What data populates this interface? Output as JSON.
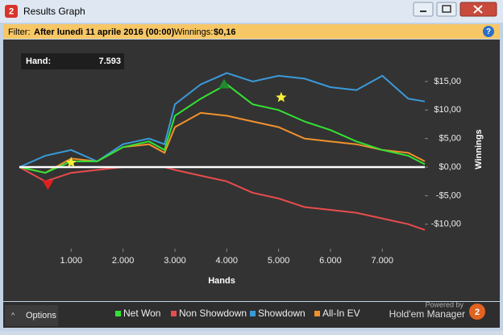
{
  "window": {
    "title": "Results Graph",
    "logo": "2"
  },
  "filter": {
    "label": "Filter:",
    "text": "After lunedì 11 aprile 2016 (00:00)",
    "winnings_label": "Winnings:",
    "winnings": "$0,16"
  },
  "hover": {
    "label": "Hand:",
    "value": "7.593"
  },
  "footer": {
    "options": "Options",
    "powered": "Powered by",
    "brand": "Hold'em Manager"
  },
  "chart_data": {
    "type": "line",
    "x_label": "Hands",
    "y_label": "Winnings",
    "x": [
      0,
      500,
      1000,
      1500,
      2000,
      2500,
      2800,
      3000,
      3500,
      4000,
      4500,
      5000,
      5500,
      6000,
      6500,
      7000,
      7500,
      7820
    ],
    "series": [
      {
        "name": "Net Won",
        "color": "#33e333",
        "values": [
          0,
          -1,
          1,
          1,
          3.5,
          4.5,
          3,
          9,
          12,
          14.5,
          11,
          10,
          8,
          6.5,
          4.5,
          3,
          2,
          0.5
        ]
      },
      {
        "name": "Non Showdown",
        "color": "#e84c4c",
        "values": [
          0,
          -2.5,
          -1,
          -0.5,
          0,
          0,
          0,
          -0.5,
          -1.5,
          -2.5,
          -4.5,
          -5.5,
          -7,
          -7.5,
          -8,
          -9,
          -10,
          -11
        ]
      },
      {
        "name": "Showdown",
        "color": "#3a9ad9",
        "values": [
          0,
          2,
          3,
          1,
          4,
          5,
          4,
          11,
          14.5,
          16.5,
          15,
          16,
          15.5,
          14,
          13.5,
          16,
          12,
          11.5
        ]
      },
      {
        "name": "All-In EV",
        "color": "#f0922c",
        "values": [
          0,
          -1,
          1.5,
          1,
          3.5,
          4,
          2.5,
          7,
          9.5,
          9,
          8,
          7,
          5,
          4.5,
          4,
          3,
          2.5,
          1
        ]
      }
    ],
    "markers": [
      {
        "shape": "star",
        "color": "#f5f03a",
        "x": 1000,
        "y": 0.8
      },
      {
        "shape": "star",
        "color": "#f5f03a",
        "x": 5050,
        "y": 12.2
      },
      {
        "shape": "triangle-up",
        "color": "#1f8a2e",
        "x": 3950,
        "y": 14.5
      },
      {
        "shape": "triangle-down",
        "color": "#e02020",
        "x": 550,
        "y": -3
      }
    ],
    "xlim": [
      0,
      7820
    ],
    "ylim": [
      -14,
      21.5
    ],
    "xticks": [
      {
        "value": 1000,
        "label": "1.000"
      },
      {
        "value": 2000,
        "label": "2.000"
      },
      {
        "value": 3000,
        "label": "3.000"
      },
      {
        "value": 4000,
        "label": "4.000"
      },
      {
        "value": 5000,
        "label": "5.000"
      },
      {
        "value": 6000,
        "label": "6.000"
      },
      {
        "value": 7000,
        "label": "7.000"
      }
    ],
    "yticks": [
      {
        "value": -10,
        "label": "-$10,00"
      },
      {
        "value": -5,
        "label": "-$5,00"
      },
      {
        "value": 0,
        "label": "$0,00"
      },
      {
        "value": 5,
        "label": "$5,00"
      },
      {
        "value": 10,
        "label": "$10,00"
      },
      {
        "value": 15,
        "label": "$15,00"
      }
    ]
  }
}
